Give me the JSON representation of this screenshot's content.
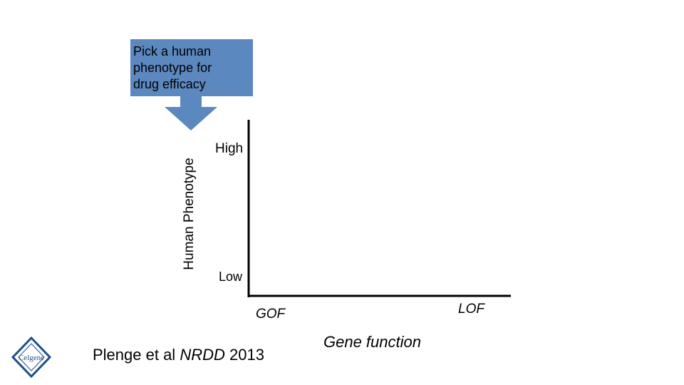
{
  "callout": {
    "text": "Pick a human\nphenotype for\ndrug efficacy",
    "color": "#5b88bf"
  },
  "axes": {
    "y_label": "Human Phenotype",
    "y_high": "High",
    "y_low": "Low",
    "x_left": "GOF",
    "x_right": "LOF",
    "x_label": "Gene function"
  },
  "citation": {
    "prefix": "Plenge et al ",
    "journal": "NRDD",
    "year": " 2013"
  },
  "logo": {
    "icon": "celgene-logo-icon",
    "text": "Celgene",
    "color": "#1f4e8c"
  }
}
